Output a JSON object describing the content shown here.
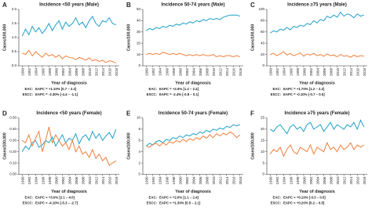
{
  "chart_data": [
    {
      "type": "line",
      "panel": "A",
      "title": "Incidence <50 years (Male)",
      "xlabel": "Year of diagnosis",
      "ylabel": "Cases/100,000",
      "x": [
        1990,
        1991,
        1992,
        1993,
        1994,
        1995,
        1996,
        1997,
        1998,
        1999,
        2000,
        2001,
        2002,
        2003,
        2004,
        2005,
        2006,
        2007,
        2008,
        2009,
        2010,
        2011,
        2012,
        2013,
        2014,
        2015,
        2016,
        2017,
        2018
      ],
      "xlim": [
        1989,
        2019
      ],
      "xticks": [
        1990,
        1992,
        1994,
        1996,
        1998,
        2000,
        2002,
        2004,
        2006,
        2008,
        2010,
        2012,
        2014,
        2016,
        2018
      ],
      "ylim": [
        0,
        2
      ],
      "yticks": [
        {
          "value": 0,
          "label": "0.0"
        },
        {
          "value": 0.5,
          "label": "0.5"
        },
        {
          "value": 1,
          "label": "1.0"
        },
        {
          "value": 1.5,
          "label": "1.5"
        },
        {
          "value": 2,
          "label": "2.0"
        }
      ],
      "series": [
        {
          "name": "EAC:",
          "eapc": "EAPC = +1.10% [0.7 – 2.2]",
          "color": "#1fa0c9",
          "values": [
            1.05,
            1.3,
            1.1,
            1.4,
            1.2,
            1.35,
            1.15,
            1.3,
            1.5,
            1.25,
            1.45,
            1.6,
            1.3,
            1.55,
            1.4,
            1.5,
            1.7,
            1.45,
            1.55,
            1.35,
            1.6,
            1.75,
            1.5,
            1.4,
            1.6,
            1.55,
            1.7,
            1.5,
            1.45
          ]
        },
        {
          "name": "ESCC:",
          "eapc": "EAPC = -3.30% [-4.4 – -1.1]",
          "color": "#f07f3c",
          "values": [
            0.45,
            0.4,
            0.55,
            0.35,
            0.5,
            0.4,
            0.3,
            0.45,
            0.35,
            0.4,
            0.3,
            0.38,
            0.25,
            0.35,
            0.3,
            0.28,
            0.22,
            0.3,
            0.25,
            0.2,
            0.28,
            0.18,
            0.22,
            0.15,
            0.2,
            0.12,
            0.18,
            0.15,
            0.1
          ]
        }
      ]
    },
    {
      "type": "line",
      "panel": "B",
      "title": "Incidence 50-74 years (Male)",
      "xlabel": "Year of diagnosis",
      "ylabel": "Cases/100,000",
      "x": [
        1990,
        1991,
        1992,
        1993,
        1994,
        1995,
        1996,
        1997,
        1998,
        1999,
        2000,
        2001,
        2002,
        2003,
        2004,
        2005,
        2006,
        2007,
        2008,
        2009,
        2010,
        2011,
        2012,
        2013,
        2014,
        2015,
        2016,
        2017,
        2018
      ],
      "xlim": [
        1989,
        2019
      ],
      "xticks": [
        1990,
        1992,
        1994,
        1996,
        1998,
        2000,
        2002,
        2004,
        2006,
        2008,
        2010,
        2012,
        2014,
        2016,
        2018
      ],
      "ylim": [
        0,
        50
      ],
      "yticks": [
        0,
        10,
        20,
        30,
        40,
        50
      ],
      "series": [
        {
          "name": "EAC:",
          "eapc": "EAPC = +2.0% [1.2 – 2.4]",
          "color": "#1fa0c9",
          "values": [
            31,
            33,
            32,
            34,
            33,
            35,
            34,
            36,
            35,
            37,
            36,
            38,
            37,
            39,
            38,
            40,
            39,
            41,
            40,
            42,
            41,
            42,
            41,
            43,
            44,
            45,
            45,
            45,
            44
          ]
        },
        {
          "name": "ESCC:",
          "eapc": "EAPC = -2.4% [-0.8 – 0.1]",
          "color": "#f07f3c",
          "values": [
            10,
            11,
            10,
            11,
            10,
            12,
            11,
            10,
            11,
            10,
            11,
            10,
            9,
            10,
            9,
            10,
            9,
            10,
            9,
            9,
            10,
            8,
            9,
            8,
            9,
            9,
            8,
            9,
            8
          ]
        }
      ]
    },
    {
      "type": "line",
      "panel": "C",
      "title": "Incidence ≥75 years (Male)",
      "xlabel": "Year of diagnosis",
      "ylabel": "Cases/100,000",
      "x": [
        1990,
        1991,
        1992,
        1993,
        1994,
        1995,
        1996,
        1997,
        1998,
        1999,
        2000,
        2001,
        2002,
        2003,
        2004,
        2005,
        2006,
        2007,
        2008,
        2009,
        2010,
        2011,
        2012,
        2013,
        2014,
        2015,
        2016,
        2017,
        2018
      ],
      "xlim": [
        1989,
        2019
      ],
      "xticks": [
        1990,
        1992,
        1994,
        1996,
        1998,
        2000,
        2002,
        2004,
        2006,
        2008,
        2010,
        2012,
        2014,
        2016,
        2018
      ],
      "ylim": [
        0,
        100
      ],
      "yticks": [
        0,
        20,
        40,
        60,
        80,
        100
      ],
      "series": [
        {
          "name": "EAC:",
          "eapc": "EAPC = +1.70% [1.2 – 2.2]",
          "color": "#1fa0c9",
          "values": [
            58,
            62,
            60,
            65,
            63,
            68,
            64,
            70,
            68,
            72,
            70,
            75,
            73,
            80,
            76,
            82,
            80,
            88,
            85,
            90,
            86,
            95,
            88,
            92,
            90,
            85,
            92,
            88,
            90
          ]
        },
        {
          "name": "ESCC:",
          "eapc": "EAPC = -0.10% [-0.7 – 0.5]",
          "color": "#f07f3c",
          "values": [
            20,
            22,
            18,
            21,
            25,
            19,
            22,
            18,
            20,
            23,
            17,
            21,
            19,
            22,
            18,
            20,
            17,
            21,
            18,
            19,
            16,
            20,
            17,
            18,
            15,
            19,
            16,
            18,
            17
          ]
        }
      ]
    },
    {
      "type": "line",
      "panel": "D",
      "title": "Incidence <50 years (Female)",
      "xlabel": "Year of diagnosis",
      "ylabel": "Cases/100,000",
      "x": [
        1990,
        1991,
        1992,
        1993,
        1994,
        1995,
        1996,
        1997,
        1998,
        1999,
        2000,
        2001,
        2002,
        2003,
        2004,
        2005,
        2006,
        2007,
        2008,
        2009,
        2010,
        2011,
        2012,
        2013,
        2014,
        2015,
        2016,
        2017,
        2018
      ],
      "xlim": [
        1989,
        2019
      ],
      "xticks": [
        1990,
        1992,
        1994,
        1996,
        1998,
        2000,
        2002,
        2004,
        2006,
        2008,
        2010,
        2012,
        2014,
        2016,
        2018
      ],
      "ylim": [
        0,
        0.5
      ],
      "yticks": [
        {
          "value": 0,
          "label": "0.00"
        },
        {
          "value": 0.1,
          "label": "0.10"
        },
        {
          "value": 0.2,
          "label": "0.20"
        },
        {
          "value": 0.3,
          "label": "0.30"
        },
        {
          "value": 0.4,
          "label": "0.40"
        },
        {
          "value": 0.5,
          "label": "0.50"
        }
      ],
      "series": [
        {
          "name": "EAC:",
          "eapc": "EAPC = +3.0% [2.1 – 4.0]",
          "color": "#1fa0c9",
          "values": [
            0.2,
            0.25,
            0.22,
            0.28,
            0.3,
            0.24,
            0.26,
            0.3,
            0.28,
            0.33,
            0.25,
            0.3,
            0.35,
            0.28,
            0.32,
            0.3,
            0.36,
            0.27,
            0.33,
            0.35,
            0.3,
            0.38,
            0.32,
            0.36,
            0.3,
            0.34,
            0.37,
            0.32,
            0.4
          ]
        },
        {
          "name": "ESCC:",
          "eapc": "EAPC = -4.10% [-5.3 – -2.7]",
          "color": "#f07f3c",
          "values": [
            0.3,
            0.28,
            0.35,
            0.25,
            0.32,
            0.38,
            0.2,
            0.3,
            0.42,
            0.28,
            0.35,
            0.3,
            0.25,
            0.28,
            0.22,
            0.3,
            0.2,
            0.25,
            0.18,
            0.2,
            0.15,
            0.22,
            0.14,
            0.18,
            0.12,
            0.15,
            0.08,
            0.1,
            0.12
          ]
        }
      ]
    },
    {
      "type": "line",
      "panel": "E",
      "title": "Incidence 50-74 years (Female)",
      "xlabel": "Year of diagnosis",
      "ylabel": "Cases/100,000",
      "x": [
        1990,
        1991,
        1992,
        1993,
        1994,
        1995,
        1996,
        1997,
        1998,
        1999,
        2000,
        2001,
        2002,
        2003,
        2004,
        2005,
        2006,
        2007,
        2008,
        2009,
        2010,
        2011,
        2012,
        2013,
        2014,
        2015,
        2016,
        2017,
        2018
      ],
      "xlim": [
        1989,
        2019
      ],
      "xticks": [
        1990,
        1992,
        1994,
        1996,
        1998,
        2000,
        2002,
        2004,
        2006,
        2008,
        2010,
        2012,
        2014,
        2016,
        2018
      ],
      "ylim": [
        0,
        10
      ],
      "yticks": [
        0,
        2,
        4,
        6,
        8,
        10
      ],
      "series": [
        {
          "name": "EAC:",
          "eapc": "EAPC = +2.0% [1.1 – 2.4]",
          "color": "#1fa0c9",
          "values": [
            5,
            5.5,
            5.2,
            5.8,
            6,
            5.6,
            6.2,
            6,
            6.5,
            6.3,
            6.8,
            6.5,
            7,
            6.8,
            7.2,
            7,
            7.5,
            7.3,
            7.8,
            7.5,
            8,
            7.8,
            8.2,
            8,
            8.5,
            8.3,
            8.8,
            8.6,
            8.8
          ]
        },
        {
          "name": "ESCC:",
          "eapc": "EAPC = +1.30% [0.5 – 2.1]",
          "color": "#f07f3c",
          "values": [
            5,
            4.8,
            5.3,
            5.5,
            5,
            5.6,
            5.2,
            5.8,
            5.5,
            6,
            5.7,
            6.2,
            5.8,
            6.3,
            6,
            6.5,
            6.2,
            6.8,
            6.4,
            7,
            6.5,
            7.2,
            6.8,
            7.3,
            7,
            7.5,
            7.2,
            6.5,
            7
          ]
        }
      ]
    },
    {
      "type": "line",
      "panel": "F",
      "title": "Incidence ≥75 years (Female)",
      "xlabel": "Year of diagnosis",
      "ylabel": "Cases/100,000",
      "x": [
        1990,
        1991,
        1992,
        1993,
        1994,
        1995,
        1996,
        1997,
        1998,
        1999,
        2000,
        2001,
        2002,
        2003,
        2004,
        2005,
        2006,
        2007,
        2008,
        2009,
        2010,
        2011,
        2012,
        2013,
        2014,
        2015,
        2016,
        2017,
        2018
      ],
      "xlim": [
        1989,
        2019
      ],
      "xticks": [
        1990,
        1992,
        1994,
        1996,
        1998,
        2000,
        2002,
        2004,
        2006,
        2008,
        2010,
        2012,
        2014,
        2016,
        2018
      ],
      "ylim": [
        0,
        25
      ],
      "yticks": [
        0,
        5,
        10,
        15,
        20,
        25
      ],
      "series": [
        {
          "name": "EAC:",
          "eapc": "EAPC = +0.10% [-0.3 – 0.5]",
          "color": "#1fa0c9",
          "values": [
            20,
            19,
            21,
            22,
            20,
            18,
            21,
            22,
            20,
            21,
            19,
            22,
            23,
            20,
            21,
            22,
            19,
            21,
            23,
            20,
            22,
            21,
            20,
            22,
            21,
            23,
            20,
            24,
            21
          ]
        },
        {
          "name": "ESCC:",
          "eapc": "EAPC = +0.20% [0.2 – 0.5]",
          "color": "#f07f3c",
          "values": [
            9,
            11,
            10,
            12,
            8,
            11,
            13,
            10,
            9,
            12,
            11,
            10,
            13,
            9,
            12,
            11,
            10,
            14,
            11,
            12,
            10,
            13,
            11,
            12,
            14,
            11,
            13,
            12,
            13
          ]
        }
      ]
    }
  ]
}
